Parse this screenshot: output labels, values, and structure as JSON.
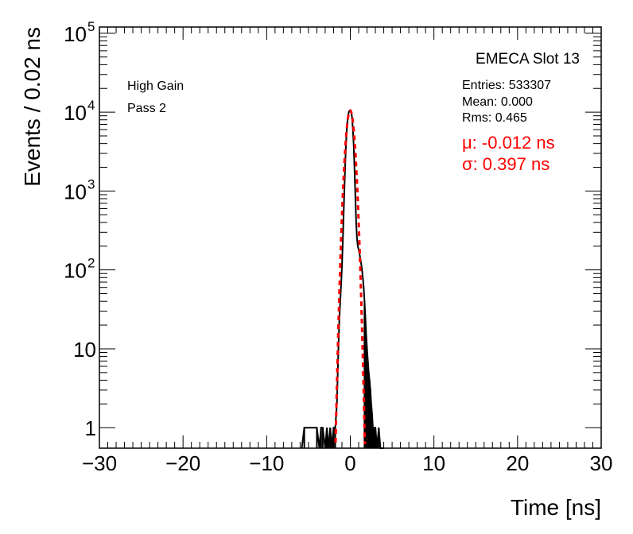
{
  "chart_data": {
    "type": "line",
    "title": "EMECA Slot 13",
    "xlabel": "Time [ns]",
    "ylabel": "Events / 0.02 ns",
    "xlim": [
      -30,
      30
    ],
    "ylim": [
      0.55,
      120000
    ],
    "yscale": "log",
    "grid": false,
    "x_ticks": [
      -30,
      -20,
      -10,
      0,
      10,
      20,
      30
    ],
    "x_tick_labels": [
      "−30",
      "−20",
      "−10",
      "0",
      "10",
      "20",
      "30"
    ],
    "y_ticks": [
      {
        "value": 1,
        "base": "1",
        "exp": ""
      },
      {
        "value": 10,
        "base": "10",
        "exp": ""
      },
      {
        "value": 100,
        "base": "10",
        "exp": "2"
      },
      {
        "value": 1000,
        "base": "10",
        "exp": "3"
      },
      {
        "value": 10000,
        "base": "10",
        "exp": "4"
      },
      {
        "value": 100000,
        "base": "10",
        "exp": "5"
      }
    ],
    "stats": {
      "entries_label": "Entries: 533307",
      "mean_label": "Mean: 0.000",
      "rms_label": "Rms: 0.465"
    },
    "annotations": {
      "gain": "High Gain",
      "pass": "Pass 2",
      "fit_mu": "μ: -0.012 ns",
      "fit_sigma": "σ: 0.397 ns"
    },
    "series": [
      {
        "color": "#000000",
        "style": "histogram",
        "x": [
          -5.8,
          -5.5,
          -4.0,
          -3.7,
          -3.5,
          -3.3,
          -3.0,
          -2.8,
          -2.6,
          -2.4,
          -2.2,
          -2.0,
          -1.8,
          -1.6,
          -1.5,
          -1.4,
          -1.3,
          -1.2,
          -1.1,
          -1.0,
          -0.9,
          -0.8,
          -0.7,
          -0.6,
          -0.5,
          -0.4,
          -0.3,
          -0.2,
          -0.1,
          0.0,
          0.1,
          0.2,
          0.3,
          0.4,
          0.5,
          0.6,
          0.7,
          0.8,
          0.9,
          1.0,
          1.1,
          1.2,
          1.3,
          1.4,
          1.5,
          1.6,
          1.7,
          1.8,
          1.9,
          2.0,
          2.1,
          2.2,
          2.3,
          2.4,
          2.5,
          2.6,
          2.7,
          2.8,
          2.9,
          3.0,
          3.2,
          3.4,
          3.6,
          4.0
        ],
        "values": [
          0.55,
          1,
          1,
          0.55,
          1,
          1,
          0.55,
          1,
          0.55,
          1,
          0.55,
          1,
          1,
          2,
          5,
          12,
          25,
          40,
          65,
          110,
          220,
          500,
          1100,
          2300,
          4200,
          6500,
          8500,
          9800,
          10400,
          10500,
          10100,
          8700,
          6300,
          3900,
          1950,
          900,
          400,
          250,
          200,
          180,
          160,
          140,
          120,
          100,
          80,
          60,
          40,
          25,
          15,
          10,
          7,
          5,
          4,
          3,
          2,
          1.5,
          1,
          1,
          1,
          1,
          0.55,
          1,
          0.55,
          0.55
        ]
      },
      {
        "color": "#ff0000",
        "style": "dashed-fit",
        "mu": -0.012,
        "sigma": 0.397,
        "amplitude": 10500
      }
    ]
  }
}
